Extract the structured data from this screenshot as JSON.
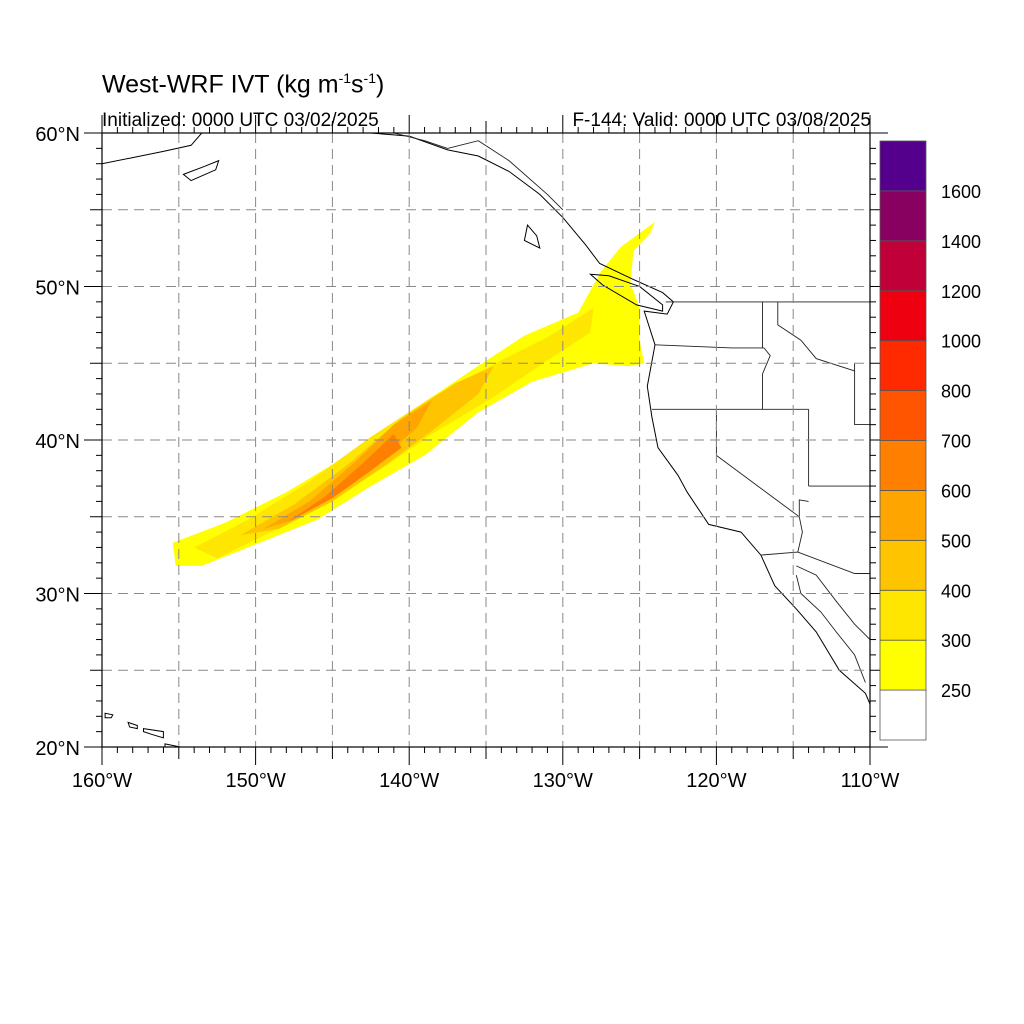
{
  "title": {
    "main": "West-WRF IVT (kg m",
    "exp1": "-1",
    "mid": "s",
    "exp2": "-1",
    "end": ")"
  },
  "init_label": "Initialized: 0000 UTC 03/02/2025",
  "valid_label": "F-144: Valid: 0000 UTC 03/08/2025",
  "map": {
    "lon_range": [
      -160,
      -110
    ],
    "lat_range": [
      20,
      60
    ],
    "lon_ticks": [
      {
        "value": -160,
        "label": "160°W"
      },
      {
        "value": -150,
        "label": "150°W"
      },
      {
        "value": -140,
        "label": "140°W"
      },
      {
        "value": -130,
        "label": "130°W"
      },
      {
        "value": -120,
        "label": "120°W"
      },
      {
        "value": -110,
        "label": "110°W"
      }
    ],
    "lat_ticks": [
      {
        "value": 20,
        "label": "20°N"
      },
      {
        "value": 30,
        "label": "30°N"
      },
      {
        "value": 40,
        "label": "40°N"
      },
      {
        "value": 50,
        "label": "50°N"
      },
      {
        "value": 60,
        "label": "60°N"
      }
    ],
    "grid": "dashed every 5 degrees",
    "ivt_plume": [
      {
        "level": 250,
        "color": "#ffff00",
        "polygon": [
          [
            -155.4,
            33.3
          ],
          [
            -152.0,
            34.6
          ],
          [
            -148.0,
            36.6
          ],
          [
            -144.0,
            39.0
          ],
          [
            -140.0,
            41.8
          ],
          [
            -136.0,
            44.5
          ],
          [
            -132.5,
            46.8
          ],
          [
            -129.0,
            48.3
          ],
          [
            -127.5,
            51.0
          ],
          [
            -126.2,
            52.6
          ],
          [
            -124.0,
            54.2
          ],
          [
            -124.3,
            53.5
          ],
          [
            -125.4,
            52.3
          ],
          [
            -125.6,
            50.2
          ],
          [
            -125.0,
            48.6
          ],
          [
            -125.0,
            46.5
          ],
          [
            -124.7,
            45.0
          ],
          [
            -125.7,
            44.8
          ],
          [
            -128.0,
            45.0
          ],
          [
            -132.0,
            43.8
          ],
          [
            -135.5,
            41.8
          ],
          [
            -139.0,
            39.0
          ],
          [
            -142.5,
            37.0
          ],
          [
            -146.0,
            34.8
          ],
          [
            -150.0,
            33.2
          ],
          [
            -153.5,
            31.8
          ],
          [
            -155.2,
            31.8
          ]
        ]
      },
      {
        "level": 300,
        "color": "#ffe600",
        "polygon": [
          [
            -154.0,
            33.0
          ],
          [
            -150.5,
            34.8
          ],
          [
            -146.5,
            37.3
          ],
          [
            -142.5,
            40.2
          ],
          [
            -138.5,
            42.8
          ],
          [
            -134.0,
            45.2
          ],
          [
            -131.0,
            46.7
          ],
          [
            -128.0,
            48.6
          ],
          [
            -128.2,
            47.0
          ],
          [
            -131.0,
            45.2
          ],
          [
            -134.5,
            42.8
          ],
          [
            -138.5,
            40.4
          ],
          [
            -142.0,
            38.0
          ],
          [
            -145.5,
            35.8
          ],
          [
            -149.0,
            34.0
          ],
          [
            -152.5,
            32.3
          ]
        ]
      },
      {
        "level": 400,
        "color": "#ffc400",
        "polygon": [
          [
            -151.0,
            33.8
          ],
          [
            -147.5,
            35.8
          ],
          [
            -144.0,
            38.4
          ],
          [
            -140.5,
            41.4
          ],
          [
            -137.0,
            43.7
          ],
          [
            -134.5,
            44.8
          ],
          [
            -135.5,
            43.0
          ],
          [
            -138.5,
            40.6
          ],
          [
            -141.5,
            38.4
          ],
          [
            -145.0,
            36.0
          ],
          [
            -148.5,
            34.2
          ]
        ]
      },
      {
        "level": 500,
        "color": "#ffa500",
        "polygon": [
          [
            -149.5,
            34.2
          ],
          [
            -146.5,
            36.0
          ],
          [
            -143.5,
            38.6
          ],
          [
            -141.0,
            41.0
          ],
          [
            -138.5,
            42.6
          ],
          [
            -139.5,
            40.8
          ],
          [
            -142.0,
            38.6
          ],
          [
            -145.0,
            36.4
          ],
          [
            -147.5,
            34.8
          ]
        ]
      },
      {
        "level": 600,
        "color": "#ff8000",
        "polygon": [
          [
            -148.0,
            34.6
          ],
          [
            -145.5,
            36.3
          ],
          [
            -143.0,
            38.5
          ],
          [
            -141.0,
            40.4
          ],
          [
            -140.5,
            39.5
          ],
          [
            -142.5,
            38.0
          ],
          [
            -145.0,
            36.2
          ]
        ]
      }
    ],
    "land_polygons": [
      {
        "name": "west-coast",
        "polygon": [
          [
            -110,
            60
          ],
          [
            -110,
            22.8
          ],
          [
            -110.3,
            23.5
          ],
          [
            -112.0,
            25.0
          ],
          [
            -113.5,
            27.5
          ],
          [
            -114.8,
            29.0
          ],
          [
            -116.2,
            30.5
          ],
          [
            -117.1,
            32.5
          ],
          [
            -118.4,
            34.0
          ],
          [
            -120.5,
            34.5
          ],
          [
            -121.9,
            36.6
          ],
          [
            -122.5,
            37.7
          ],
          [
            -123.8,
            39.5
          ],
          [
            -124.2,
            41.5
          ],
          [
            -124.5,
            43.5
          ],
          [
            -124.0,
            46.2
          ],
          [
            -124.7,
            48.4
          ],
          [
            -123.2,
            48.2
          ],
          [
            -122.8,
            49.0
          ],
          [
            -123.5,
            49.6
          ],
          [
            -125.5,
            50.5
          ],
          [
            -127.6,
            51.5
          ],
          [
            -128.5,
            52.7
          ],
          [
            -130.0,
            54.5
          ],
          [
            -131.5,
            56.0
          ],
          [
            -133.5,
            57.5
          ],
          [
            -135.5,
            58.5
          ],
          [
            -137.5,
            58.9
          ],
          [
            -140.0,
            59.8
          ],
          [
            -142.5,
            60
          ]
        ]
      },
      {
        "name": "vancouver-island",
        "polygon": [
          [
            -123.5,
            48.4
          ],
          [
            -125.2,
            48.8
          ],
          [
            -127.4,
            50.1
          ],
          [
            -128.2,
            50.8
          ],
          [
            -127.0,
            50.7
          ],
          [
            -125.0,
            50.0
          ],
          [
            -123.5,
            48.8
          ]
        ]
      },
      {
        "name": "alaska-peninsula",
        "polygon": [
          [
            -160,
            60
          ],
          [
            -160,
            58.0
          ],
          [
            -158.0,
            58.4
          ],
          [
            -156.0,
            58.8
          ],
          [
            -154.2,
            59.2
          ],
          [
            -153.5,
            60
          ]
        ]
      },
      {
        "name": "kodiak",
        "polygon": [
          [
            -154.7,
            57.3
          ],
          [
            -153.4,
            57.8
          ],
          [
            -152.4,
            58.2
          ],
          [
            -152.6,
            57.6
          ],
          [
            -154.2,
            56.9
          ]
        ]
      },
      {
        "name": "haida-gwaii",
        "polygon": [
          [
            -132.3,
            54.0
          ],
          [
            -131.7,
            53.3
          ],
          [
            -131.5,
            52.5
          ],
          [
            -132.5,
            53.0
          ]
        ]
      }
    ],
    "lines": [
      {
        "name": "us-canada-border",
        "points": [
          [
            -123.3,
            49.0
          ],
          [
            -110,
            49.0
          ]
        ]
      },
      {
        "name": "alaska-border",
        "points": [
          [
            -141.0,
            60
          ],
          [
            -139.0,
            59.5
          ],
          [
            -137.5,
            59.0
          ],
          [
            -135.5,
            59.5
          ],
          [
            -133.5,
            58.2
          ],
          [
            -131.0,
            56.0
          ],
          [
            -130.0,
            55.0
          ]
        ]
      },
      {
        "name": "wa-or-border",
        "points": [
          [
            -124.0,
            46.2
          ],
          [
            -119.0,
            46.0
          ],
          [
            -116.9,
            46.0
          ]
        ]
      },
      {
        "name": "wa-id-border",
        "points": [
          [
            -117.0,
            49.0
          ],
          [
            -117.0,
            46.0
          ]
        ]
      },
      {
        "name": "or-id-border",
        "points": [
          [
            -116.9,
            46.0
          ],
          [
            -116.5,
            45.5
          ],
          [
            -117.0,
            44.3
          ],
          [
            -117.0,
            42.0
          ]
        ]
      },
      {
        "name": "ca-or-nv-border",
        "points": [
          [
            -124.2,
            42.0
          ],
          [
            -114.0,
            42.0
          ]
        ]
      },
      {
        "name": "ca-nv-border",
        "points": [
          [
            -120.0,
            42.0
          ],
          [
            -120.0,
            39.0
          ],
          [
            -114.6,
            35.0
          ]
        ]
      },
      {
        "name": "nv-ut-border",
        "points": [
          [
            -114.0,
            42.0
          ],
          [
            -114.0,
            37.0
          ]
        ]
      },
      {
        "name": "az-ut-border",
        "points": [
          [
            -114.0,
            37.0
          ],
          [
            -110,
            37.0
          ]
        ]
      },
      {
        "name": "az-nv-border",
        "points": [
          [
            -114.6,
            35.0
          ],
          [
            -114.6,
            36.1
          ],
          [
            -114.0,
            36.0
          ]
        ]
      },
      {
        "name": "ca-az-border",
        "points": [
          [
            -114.6,
            35.0
          ],
          [
            -114.4,
            34.0
          ],
          [
            -114.7,
            32.7
          ]
        ]
      },
      {
        "name": "us-mexico-border",
        "points": [
          [
            -117.1,
            32.5
          ],
          [
            -114.7,
            32.7
          ],
          [
            -111.0,
            31.3
          ],
          [
            -110,
            31.3
          ]
        ]
      },
      {
        "name": "id-mt-border",
        "points": [
          [
            -116.0,
            49.0
          ],
          [
            -116.0,
            47.5
          ],
          [
            -114.5,
            46.5
          ],
          [
            -113.5,
            45.3
          ],
          [
            -111.0,
            44.5
          ]
        ]
      },
      {
        "name": "mt-wy-border",
        "points": [
          [
            -111.0,
            45.0
          ],
          [
            -111.0,
            41.0
          ],
          [
            -110,
            41.0
          ]
        ]
      },
      {
        "name": "sonora-coast",
        "points": [
          [
            -114.8,
            31.8
          ],
          [
            -113.5,
            31.2
          ],
          [
            -112.2,
            29.5
          ],
          [
            -111.0,
            28.0
          ],
          [
            -110.0,
            27.0
          ]
        ]
      },
      {
        "name": "baja-east-coast",
        "points": [
          [
            -114.8,
            31.2
          ],
          [
            -114.5,
            30.0
          ],
          [
            -113.2,
            28.8
          ],
          [
            -112.2,
            27.5
          ],
          [
            -111.0,
            26.0
          ],
          [
            -110.3,
            24.2
          ]
        ]
      }
    ],
    "hawaii": [
      {
        "name": "niihau-kauai",
        "polygon": [
          [
            -159.8,
            22.2
          ],
          [
            -159.3,
            22.1
          ],
          [
            -159.4,
            21.9
          ],
          [
            -159.8,
            21.9
          ]
        ]
      },
      {
        "name": "oahu",
        "polygon": [
          [
            -158.3,
            21.6
          ],
          [
            -157.7,
            21.4
          ],
          [
            -157.7,
            21.2
          ],
          [
            -158.2,
            21.3
          ]
        ]
      },
      {
        "name": "molokai-maui",
        "polygon": [
          [
            -157.3,
            21.2
          ],
          [
            -156.0,
            21.0
          ],
          [
            -156.0,
            20.6
          ],
          [
            -156.7,
            20.8
          ],
          [
            -157.3,
            21.0
          ]
        ]
      },
      {
        "name": "big-island",
        "polygon": [
          [
            -155.9,
            20.2
          ],
          [
            -154.9,
            20.0
          ],
          [
            -155.4,
            20.0
          ],
          [
            -155.9,
            20.0
          ]
        ]
      }
    ]
  },
  "colorbar": {
    "levels": [
      250,
      300,
      400,
      500,
      600,
      700,
      800,
      1000,
      1200,
      1400,
      1600
    ],
    "labels": [
      "250",
      "300",
      "400",
      "500",
      "600",
      "700",
      "800",
      "1000",
      "1200",
      "1400",
      "1600"
    ],
    "colors": [
      "#ffffff",
      "#ffff00",
      "#ffe600",
      "#ffc400",
      "#ffa500",
      "#ff8000",
      "#ff5500",
      "#ff2a00",
      "#ee0010",
      "#c00038",
      "#880060",
      "#55008c"
    ]
  }
}
